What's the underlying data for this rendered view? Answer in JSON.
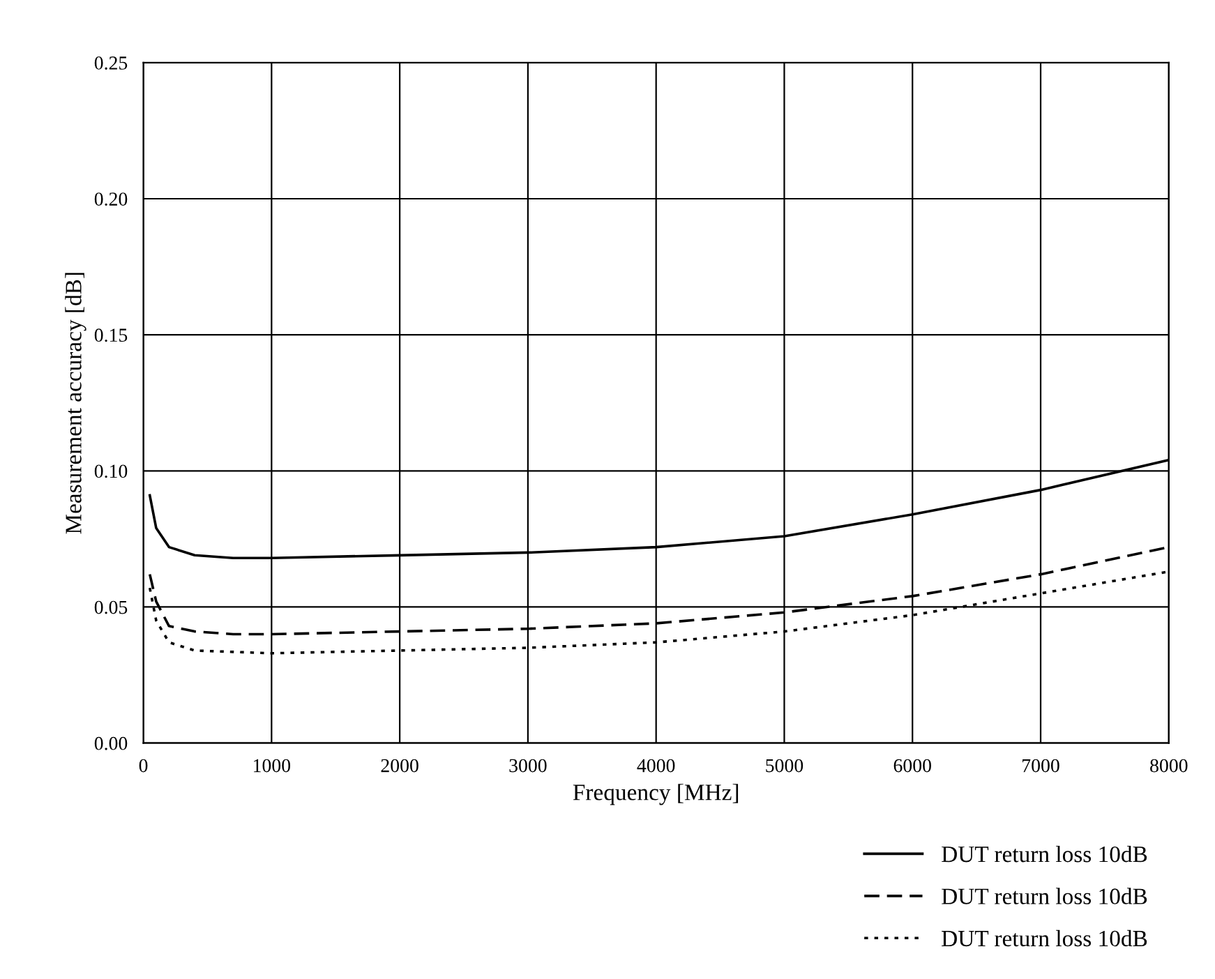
{
  "chart_data": {
    "type": "line",
    "xlabel": "Frequency [MHz]",
    "ylabel": "Measurement accuracy [dB]",
    "xlim": [
      0,
      8000
    ],
    "xticks": [
      0,
      1000,
      2000,
      3000,
      4000,
      5000,
      6000,
      7000,
      8000
    ],
    "ylim": [
      0,
      0.25
    ],
    "yticks": [
      {
        "value": 0,
        "label": "0.00"
      },
      {
        "value": 0.05,
        "label": "0.05"
      },
      {
        "value": 0.1,
        "label": "0.10"
      },
      {
        "value": 0.15,
        "label": "0.15"
      },
      {
        "value": 0.2,
        "label": "0.20"
      },
      {
        "value": 0.25,
        "label": "0.25"
      }
    ],
    "grid": true,
    "legend": "bottom right",
    "x": [
      50,
      100,
      200,
      400,
      700,
      1000,
      2000,
      3000,
      4000,
      5000,
      6000,
      7000,
      8000
    ],
    "series": [
      {
        "name": "DUT return loss 10dB",
        "color": "#000000",
        "line_style": "solid",
        "values": [
          0.091,
          0.079,
          0.072,
          0.069,
          0.068,
          0.068,
          0.069,
          0.07,
          0.072,
          0.076,
          0.084,
          0.093,
          0.104
        ]
      },
      {
        "name": "DUT return loss 10dB",
        "color": "#000000",
        "line_style": "dashed",
        "values": [
          0.062,
          0.052,
          0.043,
          0.041,
          0.04,
          0.04,
          0.041,
          0.042,
          0.044,
          0.048,
          0.054,
          0.062,
          0.072
        ]
      },
      {
        "name": "DUT return loss 10dB",
        "color": "#000000",
        "line_style": "dotted",
        "values": [
          0.057,
          0.045,
          0.037,
          0.034,
          0.0335,
          0.033,
          0.034,
          0.035,
          0.037,
          0.041,
          0.047,
          0.055,
          0.063
        ]
      }
    ]
  }
}
